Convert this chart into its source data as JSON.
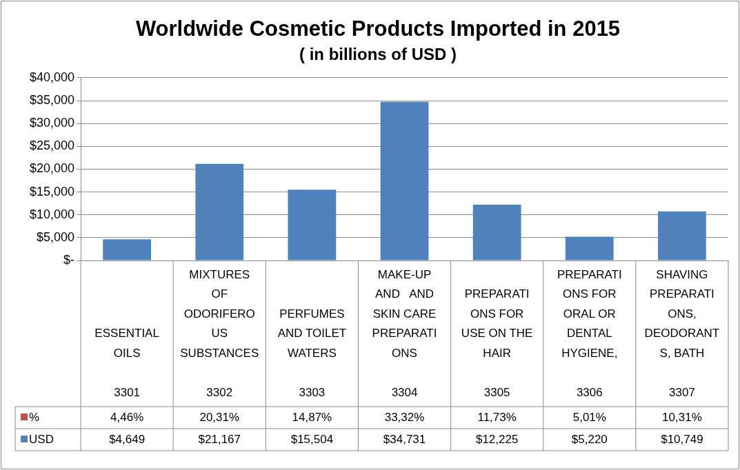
{
  "chart_data": {
    "type": "bar",
    "title": "Worldwide Cosmetic Products Imported in 2015",
    "subtitle": "( in billions of USD )",
    "categories": [
      "ESSENTIAL OILS\n3301",
      "MIXTURES OF ODORIFEROUS SUBSTANCES\n3302",
      "PERFUMES AND TOILET WATERS\n3303",
      "MAKE-UP AND   AND SKIN CARE PREPARATIONS\n3304",
      "PREPARATIONS FOR USE ON THE HAIR\n3305",
      "PREPARATIONS FOR ORAL OR DENTAL HYGIENE,\n3306",
      "SHAVING PREPARATIONS, DEODORANTS, BATH\n3307"
    ],
    "series": [
      {
        "name": "USD",
        "color": "#4f81bd",
        "values": [
          4649,
          21167,
          15504,
          34731,
          12225,
          5220,
          10749
        ],
        "value_labels": [
          "$4,649",
          "$21,167",
          "$15,504",
          "$34,731",
          "$12,225",
          "$5,220",
          "$10,749"
        ]
      },
      {
        "name": "%",
        "color": "#c0504d",
        "values": [
          4.46,
          20.31,
          14.87,
          33.32,
          11.73,
          5.01,
          10.31
        ],
        "value_labels": [
          "4,46%",
          "20,31%",
          "14,87%",
          "33,32%",
          "11,73%",
          "5,01%",
          "10,31%"
        ]
      }
    ],
    "stacked": true,
    "ylim": [
      0,
      40000
    ],
    "yticks": [
      {
        "value": 0,
        "label": "$-"
      },
      {
        "value": 5000,
        "label": "$5,000"
      },
      {
        "value": 10000,
        "label": "$10,000"
      },
      {
        "value": 15000,
        "label": "$15,000"
      },
      {
        "value": 20000,
        "label": "$20,000"
      },
      {
        "value": 25000,
        "label": "$25,000"
      },
      {
        "value": 30000,
        "label": "$30,000"
      },
      {
        "value": 35000,
        "label": "$35,000"
      },
      {
        "value": 40000,
        "label": "$40,000"
      }
    ],
    "grid": "y",
    "legend": "bottom left"
  }
}
